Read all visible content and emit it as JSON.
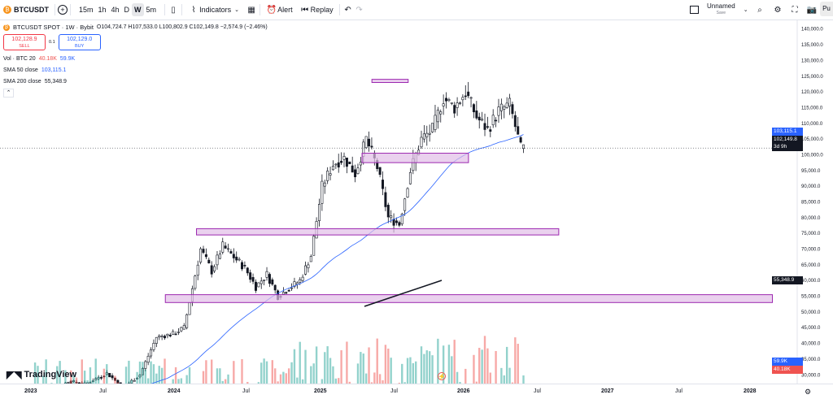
{
  "toolbar": {
    "symbol": "BTCUSDT",
    "intervals": [
      "15m",
      "1h",
      "4h",
      "D",
      "W",
      "5m"
    ],
    "active_interval": "W",
    "indicators_label": "Indicators",
    "alert_label": "Alert",
    "replay_label": "Replay",
    "layout_name": "Unnamed",
    "layout_status": "Save",
    "publish_label": "Pu"
  },
  "legend": {
    "title": "BTCUSDT SPOT · 1W · Bybit",
    "ohlc": "O104,724.7 H107,533.0 L100,802.9 C102,149.8 −2,574.9 (−2.46%)",
    "sell_price": "102,128.9",
    "sell_label": "SELL",
    "spread": "0.1",
    "buy_price": "102,129.0",
    "buy_label": "BUY",
    "vol_label": "Vol · BTC 20",
    "vol_value1": "40.18K",
    "vol_value2": "59.9K",
    "sma50_label": "SMA 50 close",
    "sma50_value": "103,115.1",
    "sma200_label": "SMA 200 close",
    "sma200_value": "55,348.9"
  },
  "price_axis": [
    "140,000.0",
    "135,000.0",
    "130,000.0",
    "125,000.0",
    "120,000.0",
    "115,000.0",
    "110,000.0",
    "105,000.0",
    "100,000.0",
    "95,000.0",
    "90,000.0",
    "85,000.0",
    "80,000.0",
    "75,000.0",
    "70,000.0",
    "65,000.0",
    "60,000.0",
    "55,000.0",
    "50,000.0",
    "45,000.0",
    "40,000.0",
    "35,000.0",
    "30,000.0"
  ],
  "price_tags": {
    "sma50": "103,115.1",
    "last": "102,149.8",
    "countdown": "3d 9h",
    "sma200": "55,348.9",
    "vol_ma": "59.9K",
    "vol": "40.18K"
  },
  "time_axis": [
    "2023",
    "Jul",
    "2024",
    "Jul",
    "2025",
    "Jul",
    "2026",
    "Jul",
    "2027",
    "Jul",
    "2028"
  ],
  "logo_text": "TradingView",
  "colors": {
    "up": "#26a69a",
    "down": "#ef5350",
    "sma50": "#2962ff",
    "zone_fill": "#e1bee7",
    "zone_border": "#9c27b0",
    "last_price": "#131722"
  },
  "chart_data": {
    "type": "candlestick",
    "timeframe": "1W",
    "ylim": [
      28000,
      142000
    ],
    "zones": [
      {
        "from": "2025-05-15",
        "to": "2025-08-15",
        "low": 123000,
        "high": 124000
      },
      {
        "from": "2025-04-20",
        "to": "2026-01-15",
        "low": 97500,
        "high": 100500
      },
      {
        "from": "2024-02-25",
        "to": "2026-09-01",
        "low": 74500,
        "high": 76500
      },
      {
        "from": "2023-12-08",
        "to": "2028-02-25",
        "low": 53000,
        "high": 55500
      }
    ],
    "last_price": 102149.8,
    "sma50_last": 103115.1,
    "sma200_last": 55348.9,
    "volume_last": "40.18K",
    "volume_ma_last": "59.9K"
  }
}
